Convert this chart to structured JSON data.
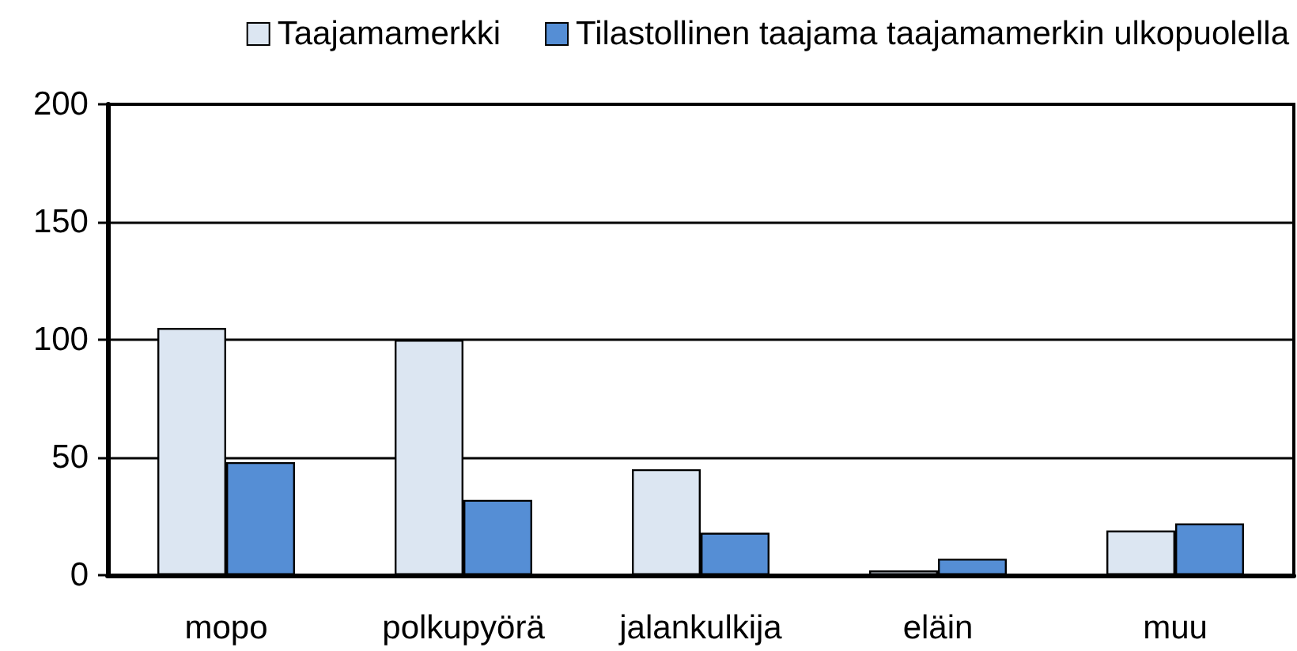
{
  "chart_data": {
    "type": "bar",
    "categories": [
      "mopo",
      "polkupyörä",
      "jalankulkija",
      "eläin",
      "muu"
    ],
    "series": [
      {
        "name": "Taajamamerkki",
        "color": "#dce6f2",
        "values": [
          105,
          100,
          45,
          2,
          19
        ]
      },
      {
        "name": "Tilastollinen taajama taajamamerkin ulkopuolella",
        "color": "#558ed5",
        "values": [
          48,
          32,
          18,
          7,
          22
        ]
      }
    ],
    "ylim": [
      0,
      200
    ],
    "yticks": [
      0,
      50,
      100,
      150,
      200
    ],
    "grid": "y",
    "legend": "top right"
  }
}
